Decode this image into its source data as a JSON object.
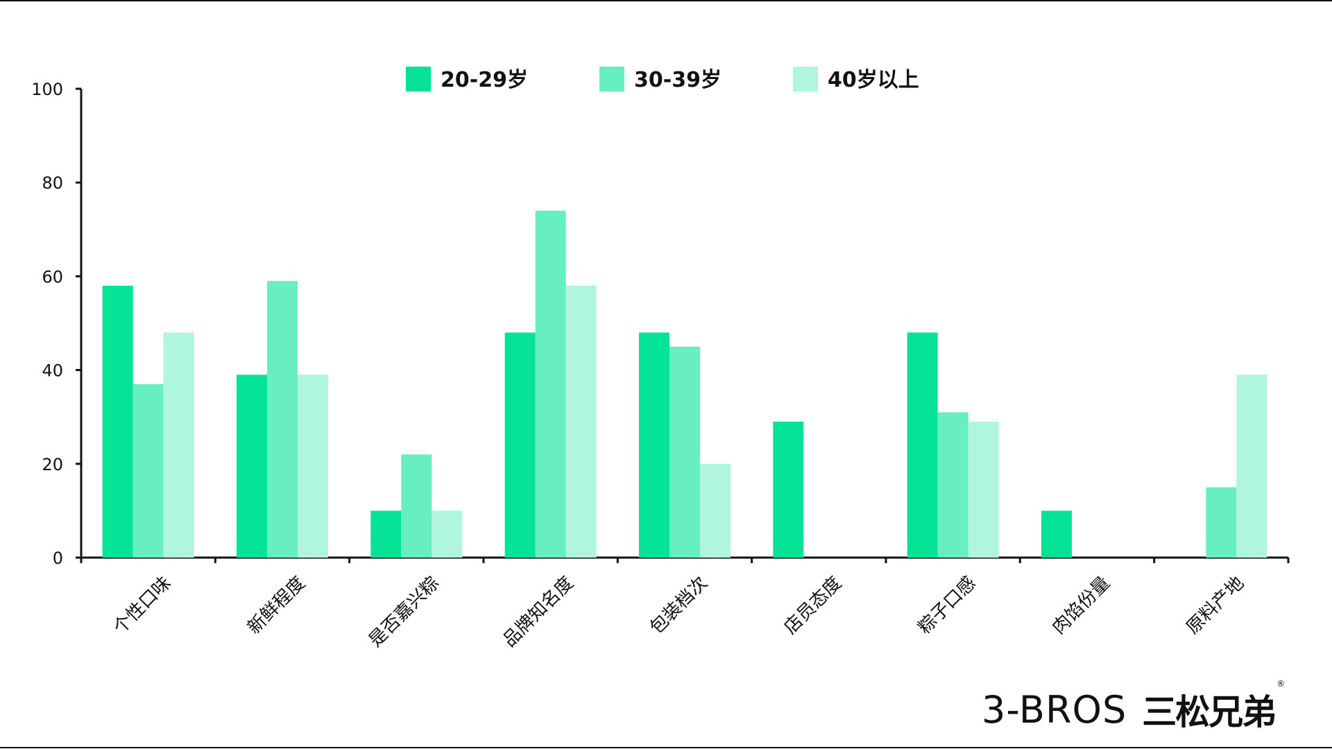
{
  "chart_data": {
    "type": "bar",
    "categories": [
      "个性口味",
      "新鲜程度",
      "是否嘉兴粽",
      "品牌知名度",
      "包装档次",
      "店员态度",
      "粽子口感",
      "肉馅份量",
      "原料产地"
    ],
    "series": [
      {
        "name": "20-29岁",
        "color": "#05e496",
        "values": [
          58,
          39,
          10,
          48,
          48,
          29,
          48,
          10,
          0
        ]
      },
      {
        "name": "30-39岁",
        "color": "#68efbf",
        "values": [
          37,
          59,
          22,
          74,
          45,
          0,
          31,
          0,
          15
        ]
      },
      {
        "name": "40岁以上",
        "color": "#b0f6dd",
        "values": [
          48,
          39,
          10,
          58,
          20,
          0,
          29,
          0,
          39
        ]
      }
    ],
    "yticks": [
      "0",
      "20",
      "40",
      "60",
      "80",
      "100"
    ],
    "ylim": [
      0,
      100
    ],
    "legend_position": "top-center",
    "grid": false
  },
  "brand": {
    "english": "3-BROS",
    "chinese": "三松兄弟",
    "registered": "®"
  }
}
